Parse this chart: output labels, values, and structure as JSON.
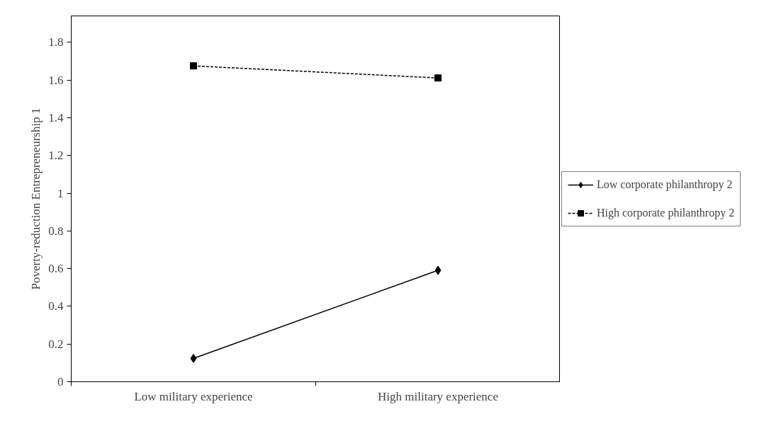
{
  "chart_data": {
    "type": "line",
    "ylabel": "Poverty-reduction Entrepreneurship 1",
    "categories": [
      "Low military experience",
      "High military experience"
    ],
    "series": [
      {
        "name": "Low corporate philanthropy 2",
        "color": "#000000",
        "values": [
          0.124,
          0.591
        ],
        "marker": "diamond",
        "line_style": "solid"
      },
      {
        "name": "High corporate philanthropy 2",
        "color": "#000000",
        "values": [
          1.675,
          1.611
        ],
        "marker": "square",
        "line_style": "dashed"
      }
    ],
    "ylim": [
      0,
      1.94
    ],
    "yticks": [
      0,
      {
        "value": 0.2,
        "label": "0.2"
      },
      {
        "value": 0.4,
        "label": "0.4"
      },
      {
        "value": 0.6,
        "label": "0.6"
      },
      {
        "value": 0.8,
        "label": "0.8"
      },
      1,
      {
        "value": 1.2,
        "label": "1.2"
      },
      {
        "value": 1.4,
        "label": "1.4"
      },
      {
        "value": 1.6,
        "label": "1.6"
      },
      {
        "value": 1.8,
        "label": "1.8"
      }
    ],
    "grid": false,
    "legend": "right"
  }
}
